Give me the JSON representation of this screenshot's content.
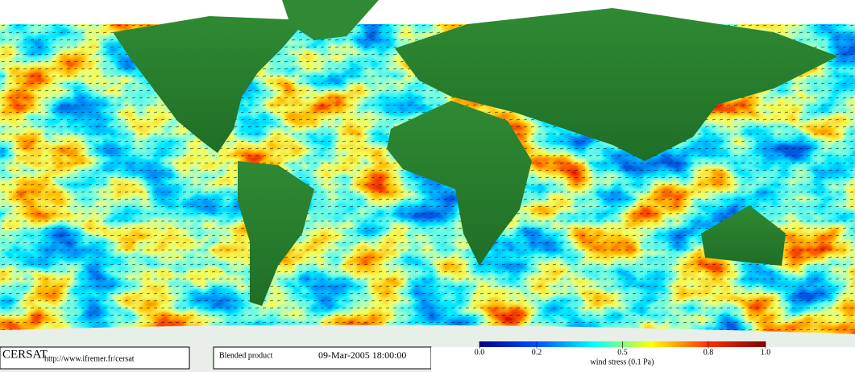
{
  "logo": "CERSAT",
  "url": "http://www.ifremer.fr/cersat",
  "product": "Blended product",
  "timestamp": "09-Mar-2005 18:00:00",
  "colorbar": {
    "title": "wind stress (0.1 Pa)",
    "lim": [
      0,
      1
    ],
    "ticks": [
      {
        "value": 0,
        "label": "0.0"
      },
      0.2,
      0.5,
      0.8,
      {
        "value": 1,
        "label": "1.0"
      }
    ]
  }
}
